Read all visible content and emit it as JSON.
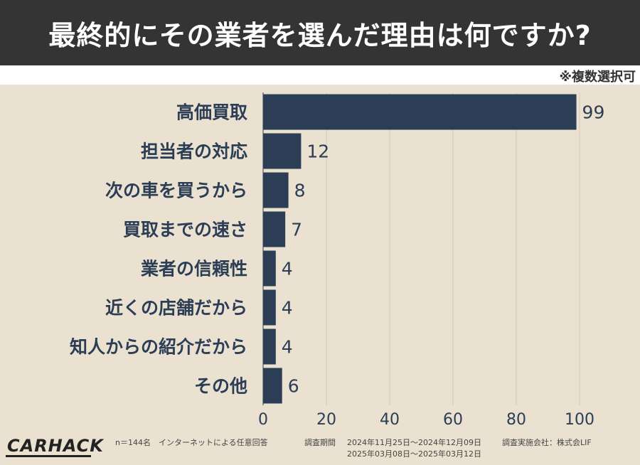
{
  "header": {
    "title": "最終的にその業者を選んだ理由は何ですか?",
    "note": "※複数選択可"
  },
  "chart_data": {
    "type": "bar",
    "orientation": "horizontal",
    "categories": [
      "高価買取",
      "担当者の対応",
      "次の車を買うから",
      "買取までの速さ",
      "業者の信頼性",
      "近くの店舗だから",
      "知人からの紹介だから",
      "その他"
    ],
    "values": [
      99,
      12,
      8,
      7,
      4,
      4,
      4,
      6
    ],
    "xlim": [
      0,
      100
    ],
    "xticks": [
      0,
      20,
      40,
      60,
      80,
      100
    ],
    "grid": true,
    "bar_color": "#2c3e55"
  },
  "footer": {
    "logo": "CARHACK",
    "sample": "n＝144名　インターネットによる任意回答",
    "period_label": "調査期間",
    "period_1": "2024年11月25日～2024年12月09日",
    "period_2": "2025年03月08日～2025年03月12日",
    "company": "調査実施会社：株式会LIF"
  }
}
